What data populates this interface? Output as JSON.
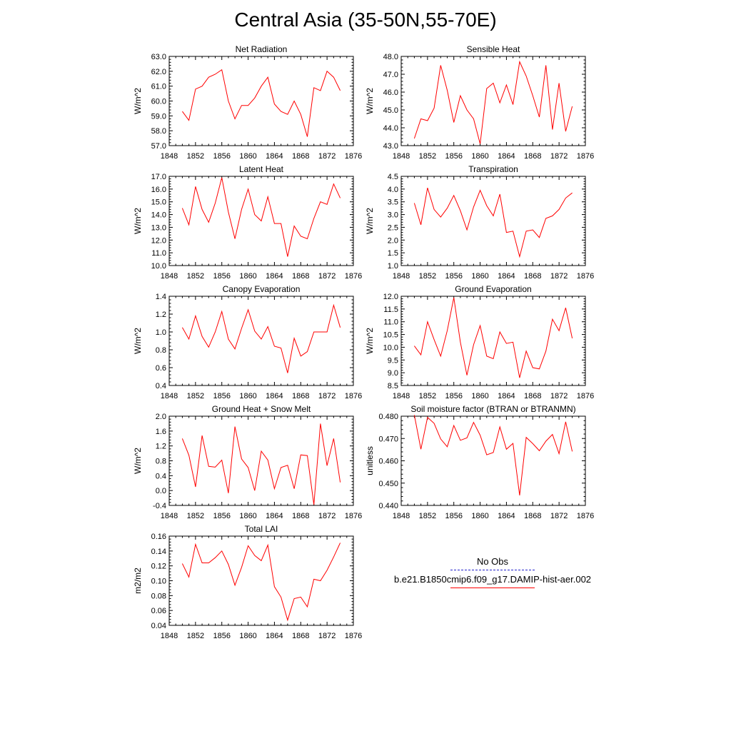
{
  "title": "Central Asia (35-50N,55-70E)",
  "legend": {
    "obs_label": "No Obs",
    "model_label": "b.e21.B1850cmip6.f09_g17.DAMIP-hist-aer.002",
    "obs_color": "#2222cc",
    "model_color": "#ff0000"
  },
  "chart_data": [
    {
      "type": "line",
      "title": "Net Radiation",
      "ylabel": "W/m^2",
      "xlim": [
        1848,
        1876
      ],
      "xticks": [
        "1848",
        "1852",
        "1856",
        "1860",
        "1864",
        "1868",
        "1872",
        "1876"
      ],
      "ylim": [
        57.0,
        63.0
      ],
      "yticks": [
        "57.0",
        "58.0",
        "59.0",
        "60.0",
        "61.0",
        "62.0",
        "63.0"
      ],
      "x": [
        1850,
        1851,
        1852,
        1853,
        1854,
        1855,
        1856,
        1857,
        1858,
        1859,
        1860,
        1861,
        1862,
        1863,
        1864,
        1865,
        1866,
        1867,
        1868,
        1869,
        1870,
        1871,
        1872,
        1873,
        1874
      ],
      "series": [
        {
          "values": [
            59.3,
            58.7,
            60.8,
            61.0,
            61.6,
            61.8,
            62.1,
            60.0,
            58.8,
            59.7,
            59.7,
            60.2,
            61.0,
            61.6,
            59.8,
            59.3,
            59.1,
            60.0,
            59.1,
            57.6,
            60.9,
            60.7,
            62.0,
            61.6,
            60.7
          ]
        }
      ]
    },
    {
      "type": "line",
      "title": "Sensible Heat",
      "ylabel": "W/m^2",
      "xlim": [
        1848,
        1876
      ],
      "xticks": [
        "1848",
        "1852",
        "1856",
        "1860",
        "1864",
        "1868",
        "1872",
        "1876"
      ],
      "ylim": [
        43.0,
        48.0
      ],
      "yticks": [
        "43.0",
        "44.0",
        "45.0",
        "46.0",
        "47.0",
        "48.0"
      ],
      "x": [
        1850,
        1851,
        1852,
        1853,
        1854,
        1855,
        1856,
        1857,
        1858,
        1859,
        1860,
        1861,
        1862,
        1863,
        1864,
        1865,
        1866,
        1867,
        1868,
        1869,
        1870,
        1871,
        1872,
        1873,
        1874
      ],
      "series": [
        {
          "values": [
            43.4,
            44.5,
            44.4,
            45.1,
            47.5,
            46.1,
            44.3,
            45.8,
            45.0,
            44.5,
            43.1,
            46.2,
            46.5,
            45.4,
            46.4,
            45.3,
            47.7,
            46.9,
            45.8,
            44.6,
            47.5,
            43.9,
            46.5,
            43.8,
            45.2
          ]
        }
      ]
    },
    {
      "type": "line",
      "title": "Latent Heat",
      "ylabel": "W/m^2",
      "xlim": [
        1848,
        1876
      ],
      "xticks": [
        "1848",
        "1852",
        "1856",
        "1860",
        "1864",
        "1868",
        "1872",
        "1876"
      ],
      "ylim": [
        10.0,
        17.0
      ],
      "yticks": [
        "10.0",
        "11.0",
        "12.0",
        "13.0",
        "14.0",
        "15.0",
        "16.0",
        "17.0"
      ],
      "x": [
        1850,
        1851,
        1852,
        1853,
        1854,
        1855,
        1856,
        1857,
        1858,
        1859,
        1860,
        1861,
        1862,
        1863,
        1864,
        1865,
        1866,
        1867,
        1868,
        1869,
        1870,
        1871,
        1872,
        1873,
        1874
      ],
      "series": [
        {
          "values": [
            14.5,
            13.2,
            16.2,
            14.4,
            13.4,
            14.9,
            16.9,
            14.2,
            12.1,
            14.4,
            16.0,
            14.0,
            13.5,
            15.4,
            13.3,
            13.3,
            10.7,
            13.1,
            12.3,
            12.1,
            13.7,
            15.0,
            14.8,
            16.4,
            15.3
          ]
        }
      ]
    },
    {
      "type": "line",
      "title": "Transpiration",
      "ylabel": "W/m^2",
      "xlim": [
        1848,
        1876
      ],
      "xticks": [
        "1848",
        "1852",
        "1856",
        "1860",
        "1864",
        "1868",
        "1872",
        "1876"
      ],
      "ylim": [
        1.0,
        4.5
      ],
      "yticks": [
        "1.0",
        "1.5",
        "2.0",
        "2.5",
        "3.0",
        "3.5",
        "4.0",
        "4.5"
      ],
      "x": [
        1850,
        1851,
        1852,
        1853,
        1854,
        1855,
        1856,
        1857,
        1858,
        1859,
        1860,
        1861,
        1862,
        1863,
        1864,
        1865,
        1866,
        1867,
        1868,
        1869,
        1870,
        1871,
        1872,
        1873,
        1874
      ],
      "series": [
        {
          "values": [
            3.45,
            2.6,
            4.05,
            3.2,
            2.9,
            3.25,
            3.75,
            3.15,
            2.4,
            3.3,
            3.95,
            3.35,
            2.95,
            3.8,
            2.3,
            2.35,
            1.35,
            2.35,
            2.4,
            2.1,
            2.85,
            2.95,
            3.2,
            3.65,
            3.85
          ]
        }
      ]
    },
    {
      "type": "line",
      "title": "Canopy Evaporation",
      "ylabel": "W/m^2",
      "xlim": [
        1848,
        1876
      ],
      "xticks": [
        "1848",
        "1852",
        "1856",
        "1860",
        "1864",
        "1868",
        "1872",
        "1876"
      ],
      "ylim": [
        0.4,
        1.4
      ],
      "yticks": [
        "0.4",
        "0.6",
        "0.8",
        "1.0",
        "1.2",
        "1.4"
      ],
      "x": [
        1850,
        1851,
        1852,
        1853,
        1854,
        1855,
        1856,
        1857,
        1858,
        1859,
        1860,
        1861,
        1862,
        1863,
        1864,
        1865,
        1866,
        1867,
        1868,
        1869,
        1870,
        1871,
        1872,
        1873,
        1874
      ],
      "series": [
        {
          "values": [
            1.05,
            0.92,
            1.18,
            0.95,
            0.83,
            1.0,
            1.23,
            0.92,
            0.81,
            1.04,
            1.25,
            1.01,
            0.92,
            1.06,
            0.84,
            0.82,
            0.54,
            0.93,
            0.73,
            0.78,
            1.0,
            1.0,
            1.0,
            1.3,
            1.05
          ]
        }
      ]
    },
    {
      "type": "line",
      "title": "Ground Evaporation",
      "ylabel": "W/m^2",
      "xlim": [
        1848,
        1876
      ],
      "xticks": [
        "1848",
        "1852",
        "1856",
        "1860",
        "1864",
        "1868",
        "1872",
        "1876"
      ],
      "ylim": [
        8.5,
        12.0
      ],
      "yticks": [
        "8.5",
        "9.0",
        "9.5",
        "10.0",
        "10.5",
        "11.0",
        "11.5",
        "12.0"
      ],
      "x": [
        1850,
        1851,
        1852,
        1853,
        1854,
        1855,
        1856,
        1857,
        1858,
        1859,
        1860,
        1861,
        1862,
        1863,
        1864,
        1865,
        1866,
        1867,
        1868,
        1869,
        1870,
        1871,
        1872,
        1873,
        1874
      ],
      "series": [
        {
          "values": [
            10.05,
            9.7,
            11.0,
            10.3,
            9.65,
            10.65,
            11.95,
            10.2,
            8.9,
            10.1,
            10.85,
            9.65,
            9.55,
            10.6,
            10.15,
            10.2,
            8.8,
            9.85,
            9.2,
            9.15,
            9.85,
            11.1,
            10.65,
            11.55,
            10.35
          ]
        }
      ]
    },
    {
      "type": "line",
      "title": "Ground Heat + Snow Melt",
      "ylabel": "W/m^2",
      "xlim": [
        1848,
        1876
      ],
      "xticks": [
        "1848",
        "1852",
        "1856",
        "1860",
        "1864",
        "1868",
        "1872",
        "1876"
      ],
      "ylim": [
        -0.4,
        2.0
      ],
      "yticks": [
        "-0.4",
        "0.0",
        "0.4",
        "0.8",
        "1.2",
        "1.6",
        "2.0"
      ],
      "x": [
        1850,
        1851,
        1852,
        1853,
        1854,
        1855,
        1856,
        1857,
        1858,
        1859,
        1860,
        1861,
        1862,
        1863,
        1864,
        1865,
        1866,
        1867,
        1868,
        1869,
        1870,
        1871,
        1872,
        1873,
        1874
      ],
      "series": [
        {
          "values": [
            1.4,
            0.95,
            0.1,
            1.48,
            0.65,
            0.63,
            0.82,
            -0.07,
            1.72,
            0.85,
            0.62,
            0.0,
            1.06,
            0.82,
            0.05,
            0.62,
            0.68,
            0.05,
            0.96,
            0.94,
            -0.38,
            1.8,
            0.67,
            1.4,
            0.22
          ]
        }
      ]
    },
    {
      "type": "line",
      "title": "Soil moisture factor (BTRAN or BTRANMN)",
      "ylabel": "unitless",
      "xlim": [
        1848,
        1876
      ],
      "xticks": [
        "1848",
        "1852",
        "1856",
        "1860",
        "1864",
        "1868",
        "1872",
        "1876"
      ],
      "ylim": [
        0.44,
        0.48
      ],
      "yticks": [
        "0.440",
        "0.450",
        "0.460",
        "0.470",
        "0.480"
      ],
      "x": [
        1850,
        1851,
        1852,
        1853,
        1854,
        1855,
        1856,
        1857,
        1858,
        1859,
        1860,
        1861,
        1862,
        1863,
        1864,
        1865,
        1866,
        1867,
        1868,
        1869,
        1870,
        1871,
        1872,
        1873,
        1874
      ],
      "series": [
        {
          "values": [
            0.4805,
            0.4652,
            0.4795,
            0.4768,
            0.4698,
            0.4663,
            0.4758,
            0.4692,
            0.4703,
            0.4772,
            0.4715,
            0.4627,
            0.4637,
            0.4752,
            0.4652,
            0.4678,
            0.4445,
            0.4705,
            0.4677,
            0.4645,
            0.4688,
            0.4718,
            0.4632,
            0.4775,
            0.4642
          ]
        }
      ]
    },
    {
      "type": "line",
      "title": "Total LAI",
      "ylabel": "m2/m2",
      "xlim": [
        1848,
        1876
      ],
      "xticks": [
        "1848",
        "1852",
        "1856",
        "1860",
        "1864",
        "1868",
        "1872",
        "1876"
      ],
      "ylim": [
        0.04,
        0.16
      ],
      "yticks": [
        "0.04",
        "0.06",
        "0.08",
        "0.10",
        "0.12",
        "0.14",
        "0.16"
      ],
      "x": [
        1850,
        1851,
        1852,
        1853,
        1854,
        1855,
        1856,
        1857,
        1858,
        1859,
        1860,
        1861,
        1862,
        1863,
        1864,
        1865,
        1866,
        1867,
        1868,
        1869,
        1870,
        1871,
        1872,
        1873,
        1874
      ],
      "series": [
        {
          "values": [
            0.123,
            0.105,
            0.149,
            0.124,
            0.124,
            0.131,
            0.14,
            0.122,
            0.094,
            0.118,
            0.147,
            0.134,
            0.127,
            0.148,
            0.092,
            0.078,
            0.047,
            0.076,
            0.078,
            0.065,
            0.102,
            0.1,
            0.114,
            0.132,
            0.151
          ]
        }
      ]
    }
  ]
}
